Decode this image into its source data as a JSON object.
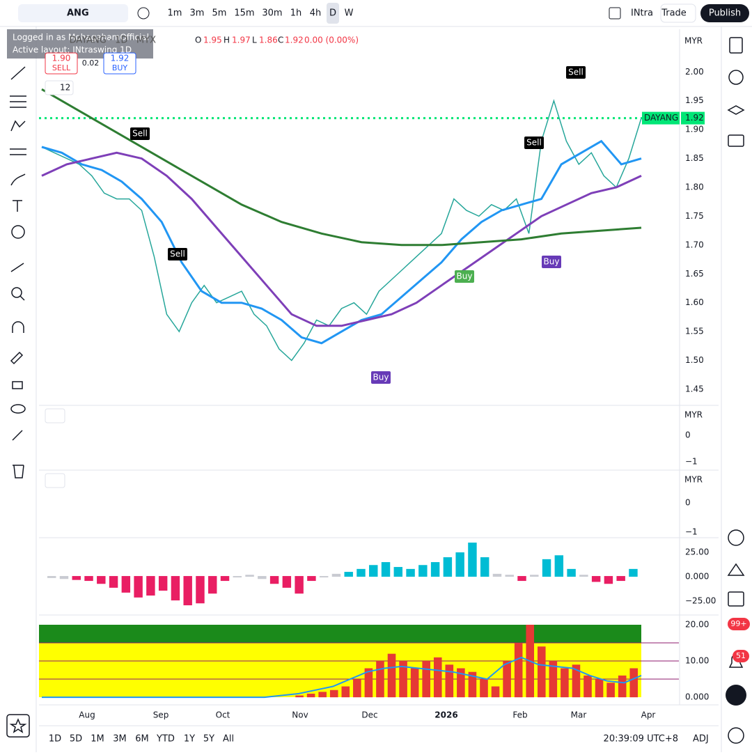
{
  "toolbar": {
    "symbol": "ANG",
    "intervals": [
      "1m",
      "3m",
      "5m",
      "15m",
      "30m",
      "1h",
      "4h",
      "D",
      "W"
    ],
    "layout": "INtra",
    "trade": "Trade",
    "publish": "Publish"
  },
  "tooltip": {
    "line1": "Logged in as MohagahamOfficial",
    "line2": "Active layout: INtraswing 1D"
  },
  "legend": {
    "symbol": "DAYANG · 1D · MYX",
    "o_label": "O",
    "o": "1.95",
    "h_label": "H",
    "h": "1.97",
    "l_label": "L",
    "l": "1.86",
    "c_label": "C",
    "c": "1.92",
    "change": "0.00 (0.00%)"
  },
  "trade_box": {
    "sell_price": "1.90",
    "sell": "SELL",
    "spread": "0.02",
    "buy_price": "1.92",
    "buy": "BUY"
  },
  "indicator_count": "12",
  "main_pane": {
    "currency": "MYR",
    "ylim": [
      1.427,
      2.074
    ],
    "yticks": [
      {
        "value": 2.0,
        "label": "2.00"
      },
      {
        "value": 1.95,
        "label": "1.95"
      },
      {
        "value": 1.9,
        "label": "1.90"
      },
      {
        "value": 1.85,
        "label": "1.85"
      },
      {
        "value": 1.8,
        "label": "1.80"
      },
      {
        "value": 1.75,
        "label": "1.75"
      },
      {
        "value": 1.7,
        "label": "1.70"
      },
      {
        "value": 1.65,
        "label": "1.65"
      },
      {
        "value": 1.6,
        "label": "1.60"
      },
      {
        "value": 1.55,
        "label": "1.55"
      },
      {
        "value": 1.5,
        "label": "1.50"
      },
      {
        "value": 1.45,
        "label": "1.45"
      }
    ],
    "last_price": {
      "symbol": "DAYANG",
      "value": 1.92,
      "label": "1.92"
    },
    "series": [
      {
        "color": "#26a69a",
        "values": [
          1.87,
          1.86,
          1.85,
          1.84,
          1.82,
          1.79,
          1.78,
          1.78,
          1.76,
          1.68,
          1.58,
          1.55,
          1.6,
          1.63,
          1.6,
          1.61,
          1.62,
          1.58,
          1.56,
          1.52,
          1.5,
          1.53,
          1.57,
          1.56,
          1.59,
          1.6,
          1.58,
          1.62,
          1.64,
          1.66,
          1.68,
          1.7,
          1.72,
          1.78,
          1.76,
          1.75,
          1.77,
          1.76,
          1.78,
          1.72,
          1.88,
          1.95,
          1.88,
          1.84,
          1.86,
          1.82,
          1.8,
          1.85,
          1.92
        ]
      },
      {
        "color": "#2196f3",
        "values": [
          1.87,
          1.86,
          1.84,
          1.83,
          1.81,
          1.78,
          1.74,
          1.67,
          1.62,
          1.6,
          1.6,
          1.59,
          1.57,
          1.54,
          1.53,
          1.55,
          1.57,
          1.58,
          1.61,
          1.64,
          1.67,
          1.71,
          1.74,
          1.76,
          1.77,
          1.78,
          1.84,
          1.86,
          1.88,
          1.84,
          1.85
        ]
      },
      {
        "color": "#7e3fb8",
        "values": [
          1.82,
          1.84,
          1.85,
          1.86,
          1.85,
          1.82,
          1.78,
          1.73,
          1.68,
          1.63,
          1.58,
          1.56,
          1.56,
          1.57,
          1.58,
          1.6,
          1.63,
          1.66,
          1.69,
          1.72,
          1.75,
          1.77,
          1.79,
          1.8,
          1.82
        ]
      },
      {
        "color": "#2e7d32",
        "values": [
          1.97,
          1.93,
          1.89,
          1.85,
          1.81,
          1.77,
          1.74,
          1.72,
          1.705,
          1.7,
          1.7,
          1.705,
          1.71,
          1.72,
          1.725,
          1.73
        ]
      }
    ],
    "signals": [
      "Sell",
      "Sell",
      "Buy",
      "Buy",
      "Sell",
      "Buy",
      "Sell"
    ]
  },
  "pane2": {
    "currency": "MYR",
    "ylim": [
      1.05,
      -1.18
    ],
    "yticks": [
      0,
      {
        "value": -1,
        "label": "−1"
      }
    ]
  },
  "pane3": {
    "currency": "MYR",
    "ylim": [
      1.05,
      -1.14
    ],
    "yticks": [
      0,
      {
        "value": -1,
        "label": "−1"
      }
    ]
  },
  "pane4": {
    "ylim": [
      -37.1,
      37.9
    ],
    "yticks": [
      {
        "value": 25,
        "label": "25.00"
      },
      {
        "value": 0,
        "label": "0.000"
      },
      {
        "value": -25,
        "label": "−25.00"
      }
    ],
    "values": [
      -2,
      -3,
      -4,
      -5,
      -8,
      -12,
      -17,
      -22,
      -20,
      -15,
      -25,
      -30,
      -28,
      -18,
      -5,
      0,
      2,
      -3,
      -8,
      -12,
      -18,
      -5,
      0,
      3,
      5,
      8,
      12,
      15,
      10,
      8,
      12,
      15,
      20,
      25,
      35,
      20,
      3,
      2,
      -5,
      2,
      18,
      22,
      8,
      2,
      -6,
      -8,
      -5,
      8
    ]
  },
  "pane5": {
    "ylim": [
      -1.7,
      22.3
    ],
    "yticks": [
      {
        "value": 20,
        "label": "20.00"
      },
      {
        "value": 10,
        "label": "10.00"
      },
      {
        "value": 0,
        "label": "0.000"
      }
    ],
    "values": [
      0,
      0,
      0,
      0,
      0,
      0,
      0,
      0,
      0,
      0,
      0,
      0,
      0,
      0,
      0,
      0,
      0,
      0,
      0,
      0,
      0,
      0,
      0.5,
      1,
      1.5,
      2,
      3,
      5,
      8,
      10,
      12,
      10,
      8,
      10,
      11,
      9,
      8,
      7,
      5,
      3,
      10,
      15,
      20,
      14,
      10,
      8,
      9,
      6,
      5,
      4,
      6,
      8
    ],
    "line": [
      0,
      0,
      0,
      0,
      0,
      0,
      0,
      0,
      0,
      0,
      0,
      0,
      0,
      0,
      0.5,
      1,
      2,
      3,
      5,
      7,
      8,
      8.5,
      8,
      7.5,
      7,
      6,
      5,
      9,
      11,
      9,
      8.5,
      8,
      6,
      4.5,
      4,
      6
    ]
  },
  "time_axis": [
    "Aug",
    "Sep",
    "Oct",
    "Nov",
    "Dec",
    "2026",
    "Feb",
    "Mar",
    "Apr"
  ],
  "bottom_bar": {
    "ranges": [
      "1D",
      "5D",
      "1M",
      "3M",
      "6M",
      "YTD",
      "1Y",
      "5Y",
      "All"
    ],
    "clock": "20:39:09 UTC+8",
    "adj": "ADJ"
  },
  "badges": {
    "alerts": "99+",
    "notifications": "51"
  }
}
